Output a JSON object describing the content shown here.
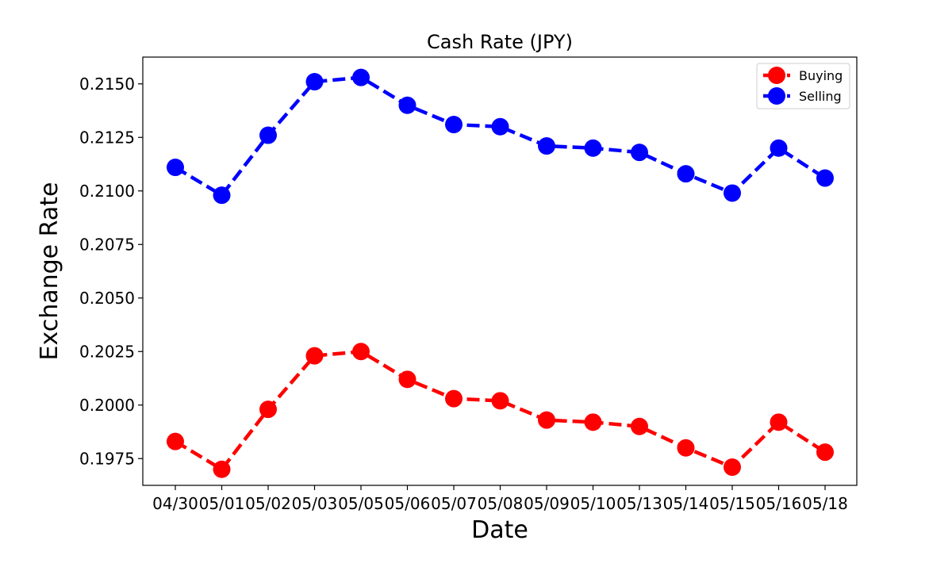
{
  "chart_data": {
    "type": "line",
    "title": "Cash Rate (JPY)",
    "xlabel": "Date",
    "ylabel": "Exchange Rate",
    "categories": [
      "04/30",
      "05/01",
      "05/02",
      "05/03",
      "05/05",
      "05/06",
      "05/07",
      "05/08",
      "05/09",
      "05/10",
      "05/13",
      "05/14",
      "05/15",
      "05/16",
      "05/18"
    ],
    "ylim": [
      0.19625,
      0.21625
    ],
    "yticks": [
      "0.1975",
      "0.2000",
      "0.2025",
      "0.2050",
      "0.2075",
      "0.2100",
      "0.2125",
      "0.2150"
    ],
    "grid": false,
    "legend_position": "top-right",
    "series": [
      {
        "name": "Buying",
        "color": "#ff0000",
        "values": [
          0.1983,
          0.197,
          0.1998,
          0.2023,
          0.2025,
          0.2012,
          0.2003,
          0.2002,
          0.1993,
          0.1992,
          0.199,
          0.198,
          0.1971,
          0.1992,
          0.1978
        ]
      },
      {
        "name": "Selling",
        "color": "#0000ff",
        "values": [
          0.2111,
          0.2098,
          0.2126,
          0.2151,
          0.2153,
          0.214,
          0.2131,
          0.213,
          0.2121,
          0.212,
          0.2118,
          0.2108,
          0.2099,
          0.212,
          0.2106
        ]
      }
    ]
  }
}
